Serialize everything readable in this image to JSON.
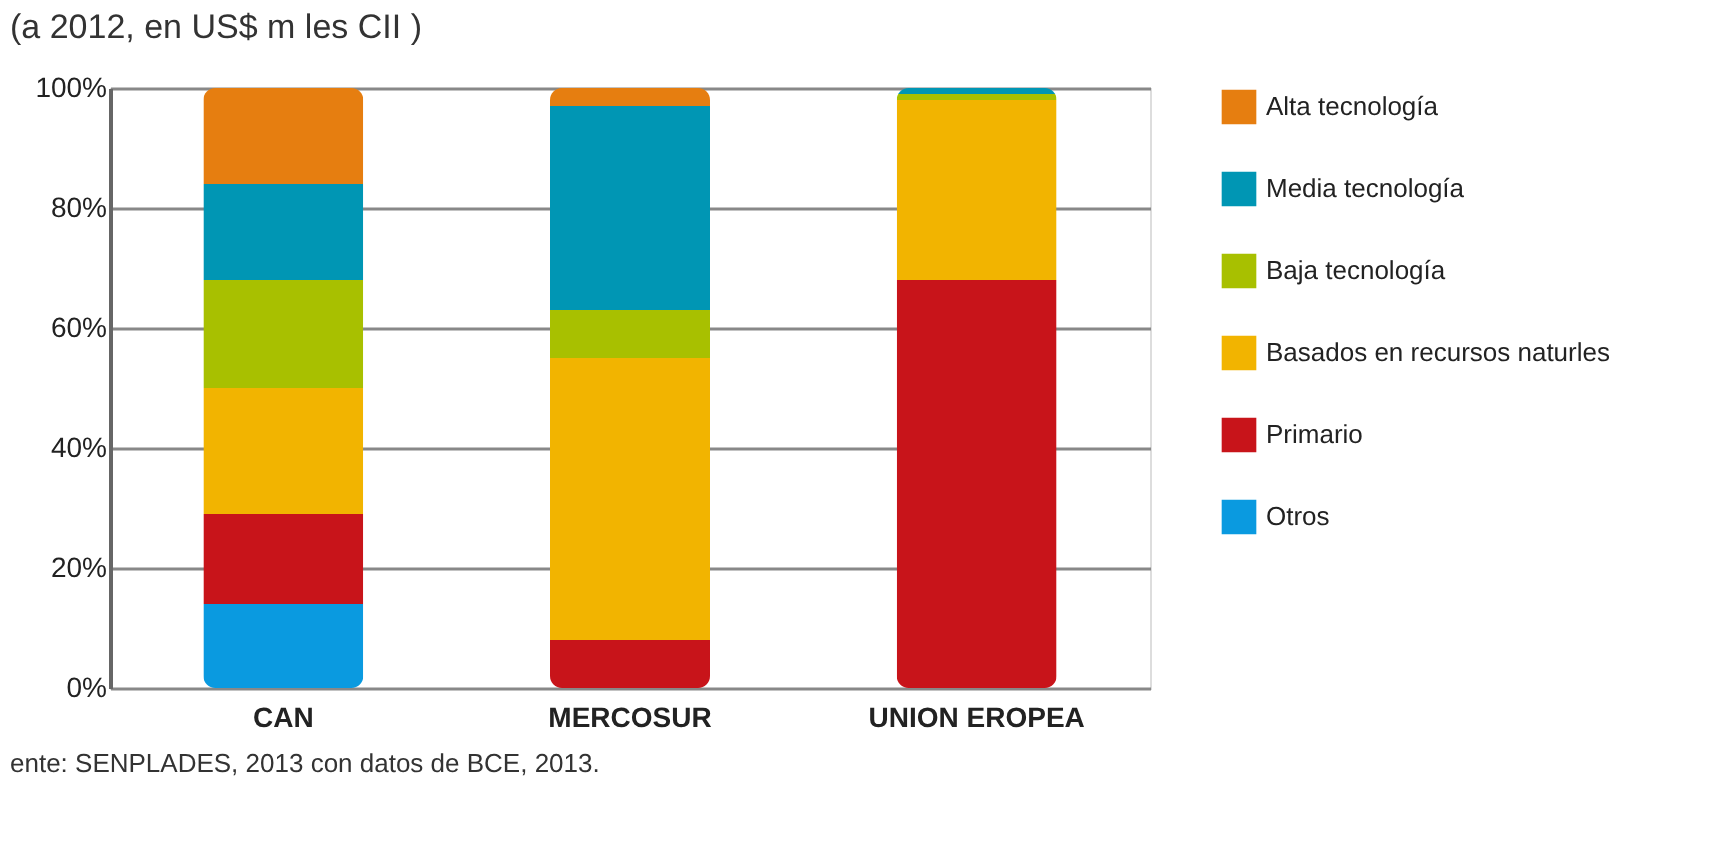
{
  "chart_data": {
    "type": "bar",
    "stacked": true,
    "title": "(a 2012, en US$ m les CII )",
    "categories": [
      "CAN",
      "MERCOSUR",
      "UNION EROPEA"
    ],
    "series": [
      {
        "name": "Otros",
        "color": "#0a9ae0",
        "values": [
          14,
          0,
          0
        ]
      },
      {
        "name": "Primario",
        "color": "#c8141a",
        "values": [
          15,
          8,
          68
        ]
      },
      {
        "name": "Basados en recursos naturles",
        "color": "#f2b400",
        "values": [
          21,
          47,
          30
        ]
      },
      {
        "name": "Baja tecnología",
        "color": "#a8c000",
        "values": [
          18,
          8,
          1
        ]
      },
      {
        "name": "Media tecnología",
        "color": "#0096b4",
        "values": [
          16,
          34,
          1
        ]
      },
      {
        "name": "Alta tecnología",
        "color": "#e67e10",
        "values": [
          16,
          3,
          0
        ]
      }
    ],
    "ylim": [
      0,
      100
    ],
    "yticks": [
      {
        "value": 0,
        "label": "0%"
      },
      {
        "value": 20,
        "label": "20%"
      },
      {
        "value": 40,
        "label": "40%"
      },
      {
        "value": 60,
        "label": "60%"
      },
      {
        "value": 80,
        "label": "80%"
      },
      {
        "value": 100,
        "label": "100%"
      }
    ],
    "grid": "y",
    "legend": "right",
    "annotations": [
      "ente: SENPLADES, 2013 con datos de BCE, 2013."
    ]
  }
}
